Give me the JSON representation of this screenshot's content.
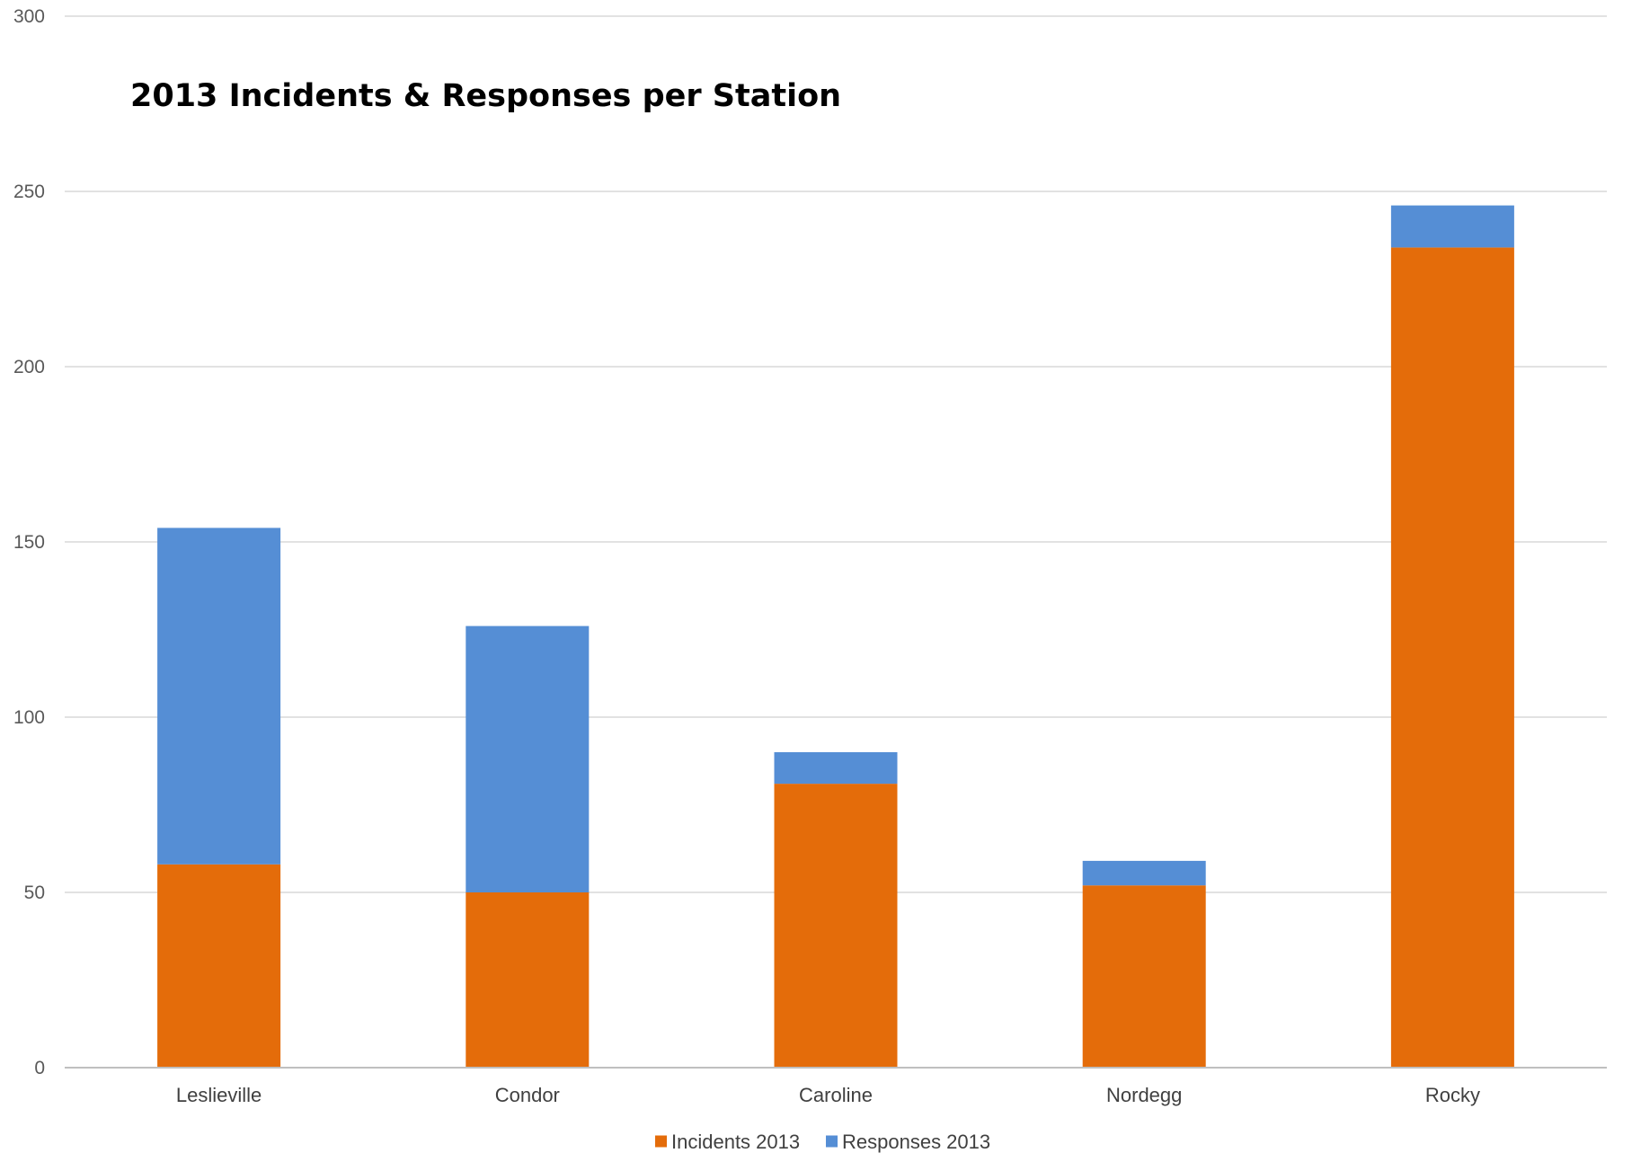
{
  "chart_data": {
    "type": "bar",
    "stacked": true,
    "title": "2013 Incidents & Responses per Station",
    "xlabel": "",
    "ylabel": "",
    "ylim": [
      0,
      300
    ],
    "yticks": [
      0,
      50,
      100,
      150,
      200,
      250,
      300
    ],
    "grid": true,
    "legend_position": "bottom",
    "categories": [
      "Leslieville",
      "Condor",
      "Caroline",
      "Nordegg",
      "Rocky"
    ],
    "series": [
      {
        "name": "Incidents 2013",
        "color": "#E46C0A",
        "values": [
          58,
          50,
          81,
          52,
          234
        ]
      },
      {
        "name": "Responses 2013",
        "color": "#558ED5",
        "values": [
          96,
          76,
          9,
          7,
          12
        ]
      }
    ]
  }
}
